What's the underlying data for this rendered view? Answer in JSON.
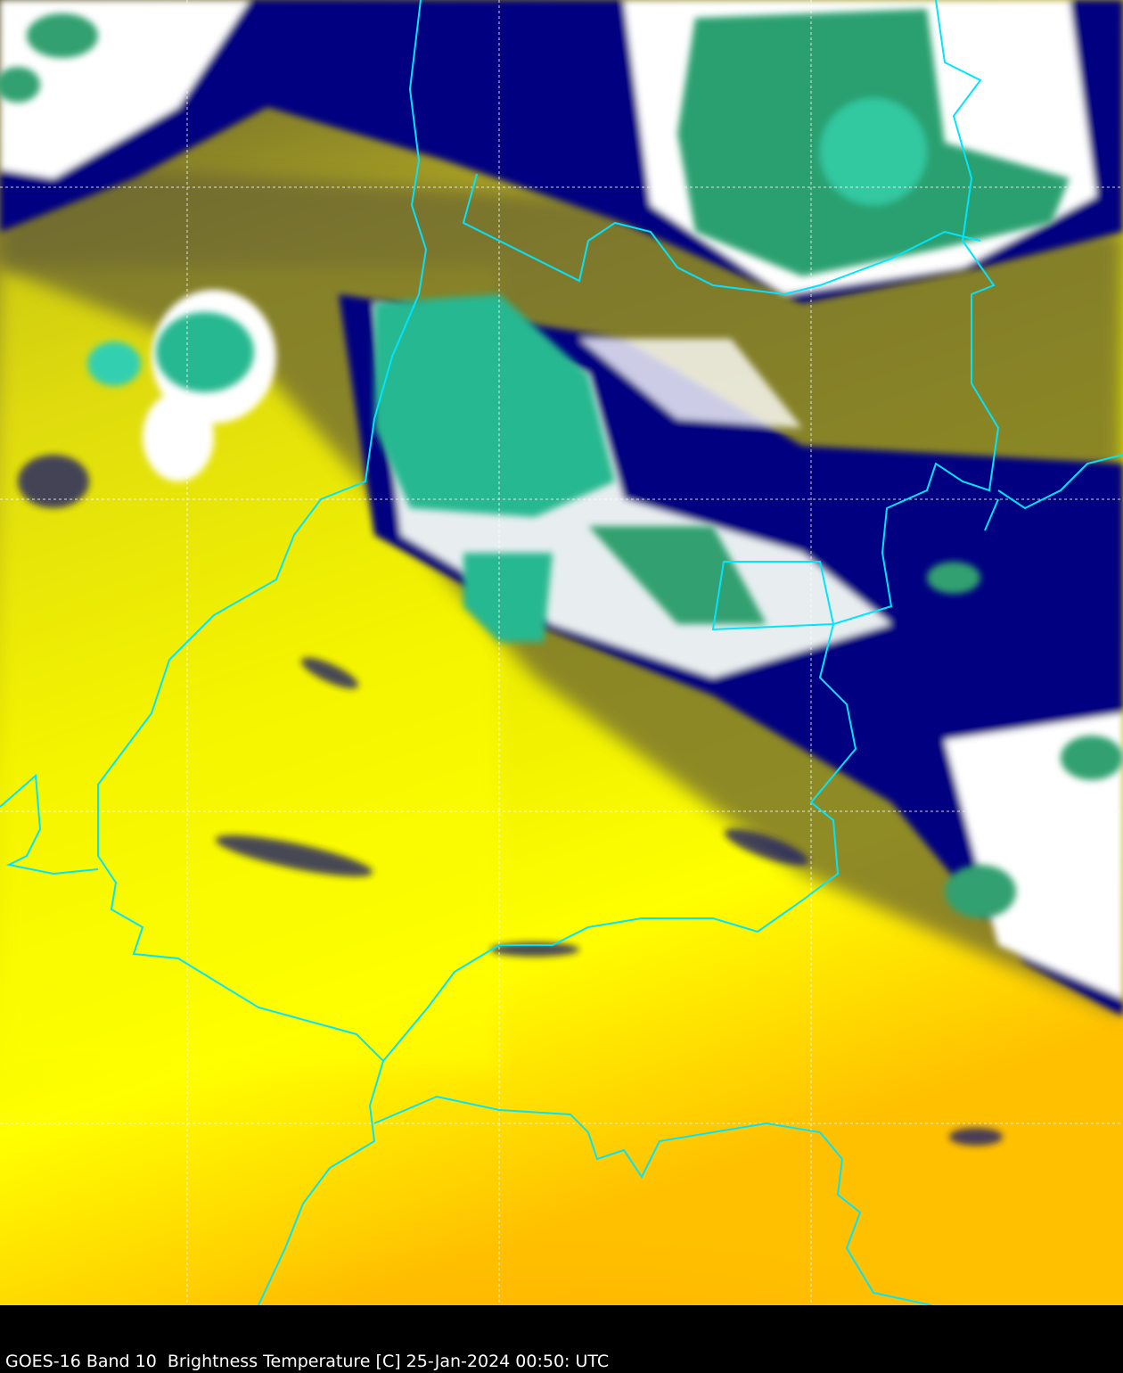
{
  "caption": "GOES-16 Band 10  Brightness Temperature [C] 25-Jan-2024 00:50: UTC",
  "satellite": "GOES-16",
  "band": "10",
  "product": "Brightness Temperature [C]",
  "colors": {
    "warm": "#ffff00",
    "warmest": "#ffb800",
    "mid": "#6b6530",
    "cold": "#000080",
    "colder": "#ffffff",
    "coldest": "#20c0a0",
    "borders": "#00e5ff",
    "grid": "#ffffff"
  }
}
